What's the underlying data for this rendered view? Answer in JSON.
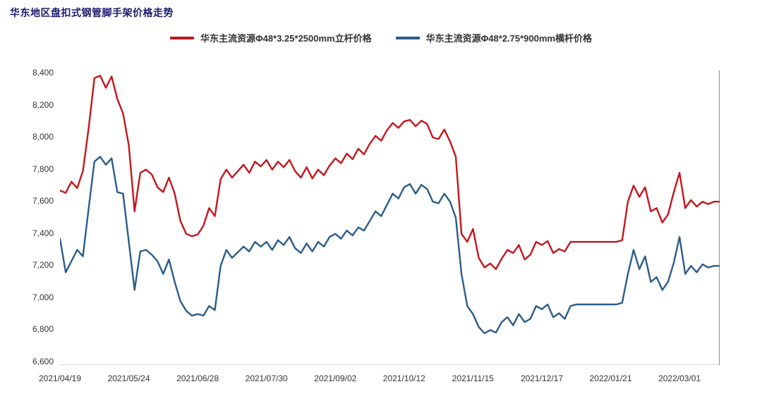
{
  "title": "华东地区盘扣式钢管脚手架价格走势",
  "colors": {
    "title": "#191970",
    "series_red": "#c3161c",
    "series_blue": "#2b5c8a",
    "axis_text": "#333333",
    "right_border": "#8a8a8a",
    "bottom_border": "#d9d9d9"
  },
  "legend": [
    {
      "label": "华东主流资源Φ48*3.25*2500mm立杆价格",
      "color": "#c3161c"
    },
    {
      "label": "华东主流资源Φ48*2.75*900mm横杆价格",
      "color": "#2b5c8a"
    }
  ],
  "chart_data": {
    "type": "line",
    "title": "华东地区盘扣式钢管脚手架价格走势",
    "xlabel": "",
    "ylabel": "",
    "grid": false,
    "legend_position": "top",
    "ylim": [
      6600,
      8400
    ],
    "y_tick_step": 200,
    "y_tick_labels": [
      "6,600",
      "6,800",
      "7,000",
      "7,200",
      "7,400",
      "7,600",
      "7,800",
      "8,000",
      "8,200",
      "8,400"
    ],
    "x_tick_labels": [
      "2021/04/19",
      "2021/05/24",
      "2021/06/28",
      "2021/07/30",
      "2021/09/02",
      "2021/10/12",
      "2021/11/15",
      "2021/12/17",
      "2022/01/21",
      "2022/03/01"
    ],
    "x_tick_indices": [
      0,
      12,
      24,
      36,
      48,
      60,
      72,
      84,
      96,
      108
    ],
    "n_points": 116,
    "series": [
      {
        "name": "华东主流资源Φ48*3.25*2500mm立杆价格",
        "color": "#c3161c",
        "values": [
          7670,
          7655,
          7725,
          7685,
          7790,
          8060,
          8370,
          8385,
          8310,
          8380,
          8240,
          8150,
          7950,
          7540,
          7780,
          7800,
          7770,
          7690,
          7660,
          7750,
          7650,
          7480,
          7400,
          7385,
          7395,
          7450,
          7560,
          7510,
          7740,
          7800,
          7750,
          7790,
          7830,
          7780,
          7850,
          7820,
          7860,
          7800,
          7850,
          7815,
          7860,
          7790,
          7750,
          7815,
          7745,
          7800,
          7765,
          7825,
          7870,
          7840,
          7900,
          7865,
          7930,
          7895,
          7960,
          8010,
          7980,
          8045,
          8090,
          8060,
          8100,
          8110,
          8070,
          8105,
          8085,
          8000,
          7990,
          8050,
          7975,
          7880,
          7400,
          7350,
          7430,
          7250,
          7190,
          7215,
          7180,
          7245,
          7300,
          7280,
          7330,
          7240,
          7270,
          7350,
          7330,
          7355,
          7280,
          7305,
          7290,
          7350,
          7350,
          7350,
          7350,
          7350,
          7350,
          7350,
          7350,
          7350,
          7360,
          7600,
          7700,
          7630,
          7690,
          7540,
          7560,
          7470,
          7520,
          7660,
          7780,
          7560,
          7610,
          7570,
          7600,
          7585,
          7600,
          7600
        ]
      },
      {
        "name": "华东主流资源Φ48*2.75*900mm横杆价格",
        "color": "#2b5c8a",
        "values": [
          7370,
          7160,
          7230,
          7300,
          7260,
          7560,
          7850,
          7880,
          7830,
          7870,
          7660,
          7650,
          7350,
          7050,
          7290,
          7300,
          7270,
          7230,
          7150,
          7240,
          7100,
          6980,
          6920,
          6890,
          6900,
          6890,
          6950,
          6925,
          7200,
          7300,
          7250,
          7285,
          7320,
          7290,
          7350,
          7320,
          7350,
          7300,
          7360,
          7330,
          7380,
          7310,
          7280,
          7340,
          7290,
          7350,
          7320,
          7380,
          7400,
          7370,
          7420,
          7390,
          7440,
          7420,
          7480,
          7540,
          7510,
          7580,
          7650,
          7620,
          7690,
          7710,
          7650,
          7705,
          7680,
          7600,
          7590,
          7650,
          7600,
          7500,
          7150,
          6950,
          6900,
          6820,
          6780,
          6800,
          6785,
          6850,
          6880,
          6830,
          6900,
          6850,
          6870,
          6950,
          6930,
          6960,
          6880,
          6905,
          6870,
          6950,
          6960,
          6960,
          6960,
          6960,
          6960,
          6960,
          6960,
          6960,
          6970,
          7150,
          7300,
          7180,
          7260,
          7100,
          7130,
          7050,
          7100,
          7220,
          7380,
          7150,
          7200,
          7160,
          7210,
          7190,
          7200,
          7200
        ]
      }
    ]
  }
}
